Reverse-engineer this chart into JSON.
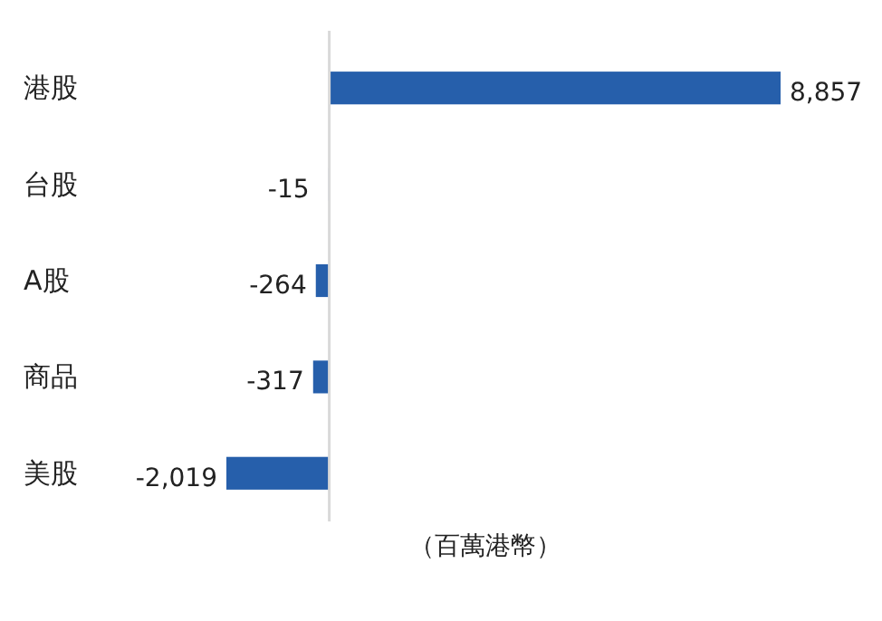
{
  "chart_data": {
    "type": "bar",
    "orientation": "horizontal",
    "categories": [
      "港股",
      "台股",
      "A股",
      "商品",
      "美股"
    ],
    "values": [
      8857,
      -15,
      -264,
      -317,
      -2019
    ],
    "color": "#265fab",
    "value_labels": [
      "8,857",
      "-15",
      "-264",
      "-317",
      "-2,019"
    ],
    "xlabel": "（百萬港幣）"
  }
}
